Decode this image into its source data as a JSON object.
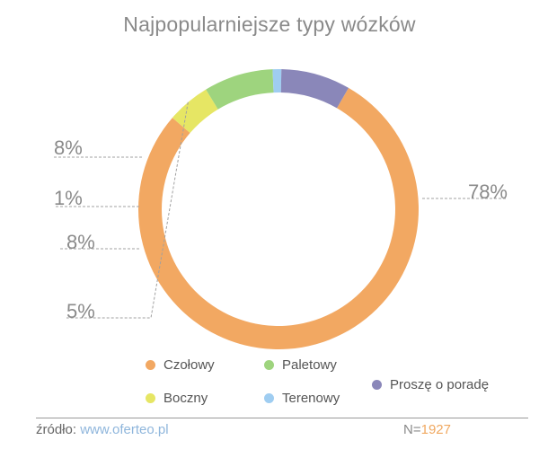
{
  "chart_data": {
    "type": "pie",
    "variant": "donut",
    "title": "Najpopularniejsze typy wózków",
    "categories": [
      "Czołowy",
      "Boczny",
      "Paletowy",
      "Terenowy",
      "Proszę o poradę"
    ],
    "values": [
      78,
      5,
      8,
      1,
      8
    ],
    "labels": [
      "78%",
      "5%",
      "8%",
      "1%",
      "8%"
    ],
    "colors": [
      "#f2a862",
      "#e6e664",
      "#9ed47e",
      "#9fcdf1",
      "#8a87b9"
    ],
    "legend_position": "bottom"
  },
  "footer": {
    "source_label": "źródło:",
    "source_link": "www.oferteo.pl",
    "sample_label": "N=",
    "sample_value": "1927"
  }
}
